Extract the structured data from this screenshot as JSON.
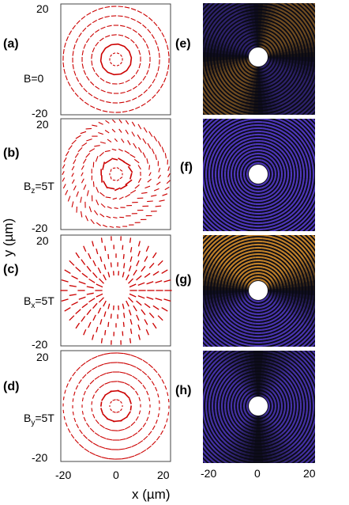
{
  "figure": {
    "axis_labels": {
      "x": "x (µm)",
      "y": "y (µm)"
    },
    "ticks": {
      "ymax": "20",
      "ymin": "-20",
      "xmin": "-20",
      "xzero": "0",
      "xmax": "20"
    },
    "left_panels": [
      {
        "label": "(a)",
        "field": {
          "main": "B=0",
          "sub": "",
          "rest": ""
        }
      },
      {
        "label": "(b)",
        "field": {
          "main": "B",
          "sub": "z",
          "rest": "=5T"
        }
      },
      {
        "label": "(c)",
        "field": {
          "main": "B",
          "sub": "x",
          "rest": "=5T"
        }
      },
      {
        "label": "(d)",
        "field": {
          "main": "B",
          "sub": "y",
          "rest": "=5T"
        }
      }
    ],
    "right_panels": [
      {
        "label": "(e)",
        "pattern": "quadrant"
      },
      {
        "label": "(f)",
        "pattern": "rings"
      },
      {
        "label": "(g)",
        "pattern": "horizontal-band"
      },
      {
        "label": "(h)",
        "pattern": "vertical-dark"
      }
    ],
    "colors": {
      "vector": "#cc0000",
      "orange": "#f0a030",
      "blue": "#5a40d8",
      "dark": "#0a0a14"
    }
  },
  "chart_data": {
    "type": "vector-field-and-density-maps",
    "xlabel": "x (µm)",
    "ylabel": "y (µm)",
    "xlim": [
      -20,
      20
    ],
    "ylim": [
      -20,
      20
    ],
    "xticks": [
      -20,
      0,
      20
    ],
    "yticks": [
      -20,
      20
    ],
    "panels": [
      {
        "label": "(a)",
        "condition": "B=0",
        "kind": "vector-field"
      },
      {
        "label": "(b)",
        "condition": "Bz=5T",
        "kind": "vector-field"
      },
      {
        "label": "(c)",
        "condition": "Bx=5T",
        "kind": "vector-field"
      },
      {
        "label": "(d)",
        "condition": "By=5T",
        "kind": "vector-field"
      },
      {
        "label": "(e)",
        "condition": "B=0",
        "kind": "density-map"
      },
      {
        "label": "(f)",
        "condition": "Bz=5T",
        "kind": "density-map"
      },
      {
        "label": "(g)",
        "condition": "Bx=5T",
        "kind": "density-map"
      },
      {
        "label": "(h)",
        "condition": "By=5T",
        "kind": "density-map"
      }
    ]
  }
}
